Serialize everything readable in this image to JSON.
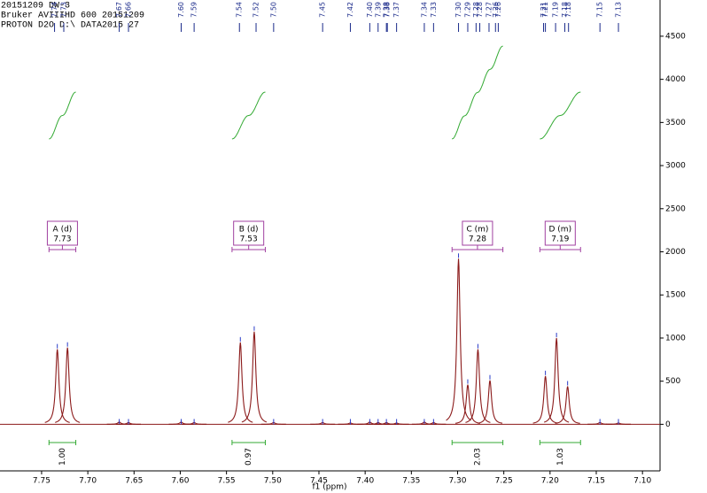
{
  "chart_data": {
    "type": "nmr",
    "header": [
      "20151209 DW-3",
      "Bruker AVIIIHD 600 20151209",
      "PROTON D2O D:\\ DATA2015 27"
    ],
    "x_label": "f1 (ppm)",
    "xlim": [
      7.795,
      7.081
    ],
    "ylim": [
      -540,
      4920
    ],
    "xticks": [
      {
        "value": 7.75,
        "label": "7.75"
      },
      {
        "value": 7.7,
        "label": "7.70"
      },
      {
        "value": 7.65,
        "label": "7.65"
      },
      {
        "value": 7.6,
        "label": "7.60"
      },
      {
        "value": 7.55,
        "label": "7.55"
      },
      {
        "value": 7.5,
        "label": "7.50"
      },
      {
        "value": 7.45,
        "label": "7.45"
      },
      {
        "value": 7.4,
        "label": "7.40"
      },
      {
        "value": 7.35,
        "label": "7.35"
      },
      {
        "value": 7.3,
        "label": "7.30"
      },
      {
        "value": 7.25,
        "label": "7.25"
      },
      {
        "value": 7.2,
        "label": "7.20"
      },
      {
        "value": 7.15,
        "label": "7.15"
      },
      {
        "value": 7.1,
        "label": "7.10"
      }
    ],
    "yticks": [
      0,
      500,
      1000,
      1500,
      2000,
      2500,
      3000,
      3500,
      4000,
      4500
    ],
    "color": "#8b1a1a",
    "peaks": {
      "ppm": [
        7.733,
        7.722,
        7.535,
        7.52,
        7.299,
        7.289,
        7.278,
        7.265,
        7.205,
        7.193,
        7.181,
        7.666,
        7.656,
        7.599,
        7.585,
        7.499,
        7.446,
        7.416,
        7.395,
        7.386,
        7.377,
        7.366,
        7.336,
        7.326,
        7.146,
        7.126
      ],
      "intensity": [
        870,
        890,
        950,
        1075,
        1920,
        460,
        870,
        510,
        560,
        1000,
        440,
        25,
        20,
        25,
        20,
        20,
        20,
        15,
        25,
        20,
        20,
        15,
        25,
        20,
        20,
        15
      ]
    },
    "peak_picks": [
      {
        "value": 7.736,
        "label": "7.74"
      },
      {
        "value": 7.726,
        "label": "7.73"
      },
      {
        "value": 7.666,
        "label": "7.67"
      },
      {
        "value": 7.656,
        "label": "7.66"
      },
      {
        "value": 7.599,
        "label": "7.60"
      },
      {
        "value": 7.585,
        "label": "7.59"
      },
      {
        "value": 7.536,
        "label": "7.54"
      },
      {
        "value": 7.518,
        "label": "7.52"
      },
      {
        "value": 7.499,
        "label": "7.50"
      },
      {
        "value": 7.446,
        "label": "7.45"
      },
      {
        "value": 7.416,
        "label": "7.42"
      },
      {
        "value": 7.395,
        "label": "7.40"
      },
      {
        "value": 7.386,
        "label": "7.39"
      },
      {
        "value": 7.377,
        "label": "7.38"
      },
      {
        "value": 7.376,
        "label": "7.38"
      },
      {
        "value": 7.366,
        "label": "7.37"
      },
      {
        "value": 7.336,
        "label": "7.34"
      },
      {
        "value": 7.326,
        "label": "7.33"
      },
      {
        "value": 7.299,
        "label": "7.30"
      },
      {
        "value": 7.289,
        "label": "7.29"
      },
      {
        "value": 7.28,
        "label": "7.28"
      },
      {
        "value": 7.276,
        "label": "7.28"
      },
      {
        "value": 7.266,
        "label": "7.27"
      },
      {
        "value": 7.259,
        "label": "7.26"
      },
      {
        "value": 7.256,
        "label": "7.26"
      },
      {
        "value": 7.207,
        "label": "7.21"
      },
      {
        "value": 7.205,
        "label": "7.21"
      },
      {
        "value": 7.194,
        "label": "7.19"
      },
      {
        "value": 7.184,
        "label": "7.18"
      },
      {
        "value": 7.18,
        "label": "7.18"
      },
      {
        "value": 7.146,
        "label": "7.15"
      },
      {
        "value": 7.126,
        "label": "7.13"
      }
    ],
    "multiplets": [
      {
        "label": "A (d)",
        "shift": 7.73,
        "range": [
          7.742,
          7.713
        ],
        "integral": "1.00"
      },
      {
        "label": "B (d)",
        "shift": 7.53,
        "range": [
          7.544,
          7.508
        ],
        "integral": "0.97"
      },
      {
        "label": "C (m)",
        "shift": 7.28,
        "range": [
          7.306,
          7.251
        ],
        "integral": "2.03"
      },
      {
        "label": "D (m)",
        "shift": 7.19,
        "range": [
          7.211,
          7.167
        ],
        "integral": "1.03"
      }
    ]
  }
}
